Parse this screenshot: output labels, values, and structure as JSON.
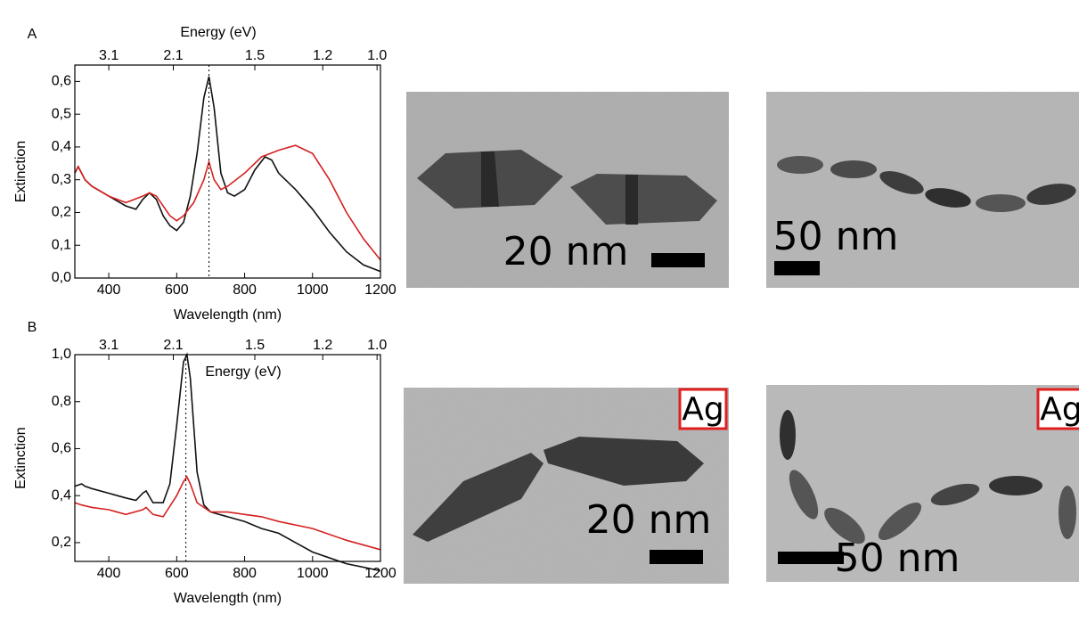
{
  "chart_data": [
    {
      "type": "line",
      "panel_label": "A",
      "xlabel": "Wavelength (nm)",
      "ylabel": "Extinction",
      "x2label": "Energy (eV)",
      "xlim": [
        300,
        1200
      ],
      "ylim": [
        0,
        0.65
      ],
      "xticks": [
        400,
        600,
        800,
        1000,
        1200
      ],
      "yticks": [
        {
          "value": 0,
          "label": "0,0"
        },
        {
          "value": 0.1,
          "label": "0,1"
        },
        {
          "value": 0.2,
          "label": "0,2"
        },
        {
          "value": 0.3,
          "label": "0,3"
        },
        {
          "value": 0.4,
          "label": "0,4"
        },
        {
          "value": 0.5,
          "label": "0,5"
        },
        {
          "value": 0.6,
          "label": "0,6"
        }
      ],
      "x2ticks": [
        {
          "value": 400,
          "label": "3.1"
        },
        {
          "value": 590,
          "label": "2.1"
        },
        {
          "value": 830,
          "label": "1.5"
        },
        {
          "value": 1030,
          "label": "1.2"
        },
        {
          "value": 1190,
          "label": "1.0"
        }
      ],
      "vline": 695,
      "series": [
        {
          "color": "#111111",
          "x": [
            300,
            310,
            320,
            330,
            350,
            400,
            450,
            480,
            500,
            520,
            540,
            560,
            580,
            600,
            620,
            640,
            660,
            680,
            695,
            710,
            730,
            750,
            770,
            800,
            830,
            860,
            880,
            900,
            950,
            1000,
            1050,
            1100,
            1150,
            1200
          ],
          "values": [
            0.32,
            0.34,
            0.32,
            0.3,
            0.28,
            0.25,
            0.22,
            0.21,
            0.24,
            0.26,
            0.24,
            0.19,
            0.16,
            0.145,
            0.17,
            0.25,
            0.38,
            0.55,
            0.615,
            0.52,
            0.32,
            0.26,
            0.25,
            0.27,
            0.33,
            0.37,
            0.36,
            0.32,
            0.27,
            0.21,
            0.14,
            0.08,
            0.04,
            0.02
          ]
        },
        {
          "color": "#d62020",
          "x": [
            300,
            310,
            330,
            350,
            400,
            450,
            500,
            520,
            540,
            560,
            580,
            600,
            620,
            650,
            680,
            695,
            710,
            730,
            750,
            800,
            850,
            900,
            950,
            1000,
            1050,
            1100,
            1150,
            1200
          ],
          "values": [
            0.32,
            0.34,
            0.3,
            0.28,
            0.25,
            0.23,
            0.25,
            0.26,
            0.25,
            0.22,
            0.19,
            0.175,
            0.19,
            0.23,
            0.3,
            0.355,
            0.3,
            0.27,
            0.28,
            0.32,
            0.37,
            0.39,
            0.405,
            0.38,
            0.3,
            0.2,
            0.12,
            0.055
          ]
        }
      ]
    },
    {
      "type": "line",
      "panel_label": "B",
      "xlabel": "Wavelength (nm)",
      "ylabel": "Extinction",
      "x2label": "Energy (eV)",
      "xlim": [
        300,
        1200
      ],
      "ylim": [
        0.12,
        1.0
      ],
      "xticks": [
        400,
        600,
        800,
        1000,
        1200
      ],
      "yticks": [
        {
          "value": 0.2,
          "label": "0,2"
        },
        {
          "value": 0.4,
          "label": "0,4"
        },
        {
          "value": 0.6,
          "label": "0,6"
        },
        {
          "value": 0.8,
          "label": "0,8"
        },
        {
          "value": 1.0,
          "label": "1,0"
        }
      ],
      "x2ticks": [
        {
          "value": 400,
          "label": "3.1"
        },
        {
          "value": 590,
          "label": "2.1"
        },
        {
          "value": 830,
          "label": "1.5"
        },
        {
          "value": 1030,
          "label": "1.2"
        },
        {
          "value": 1190,
          "label": "1.0"
        }
      ],
      "vline": 627,
      "series": [
        {
          "color": "#111111",
          "x": [
            300,
            320,
            330,
            350,
            400,
            450,
            480,
            500,
            510,
            530,
            560,
            580,
            600,
            620,
            630,
            640,
            660,
            680,
            700,
            750,
            800,
            850,
            900,
            950,
            1000,
            1100,
            1200
          ],
          "values": [
            0.44,
            0.45,
            0.44,
            0.43,
            0.41,
            0.39,
            0.38,
            0.41,
            0.42,
            0.37,
            0.37,
            0.45,
            0.7,
            0.97,
            1.0,
            0.9,
            0.5,
            0.36,
            0.33,
            0.31,
            0.29,
            0.26,
            0.24,
            0.2,
            0.16,
            0.11,
            0.08
          ]
        },
        {
          "color": "#d62020",
          "x": [
            300,
            320,
            350,
            400,
            450,
            500,
            510,
            530,
            560,
            600,
            620,
            630,
            640,
            660,
            700,
            750,
            800,
            850,
            900,
            1000,
            1100,
            1200
          ],
          "values": [
            0.37,
            0.36,
            0.35,
            0.34,
            0.32,
            0.34,
            0.35,
            0.32,
            0.31,
            0.4,
            0.46,
            0.48,
            0.45,
            0.37,
            0.33,
            0.33,
            0.32,
            0.31,
            0.29,
            0.26,
            0.21,
            0.17
          ]
        }
      ]
    }
  ],
  "images": [
    {
      "scale_label": "20 nm"
    },
    {
      "scale_label": "50 nm"
    },
    {
      "scale_label": "20 nm",
      "tag": "Ag"
    },
    {
      "scale_label": "50 nm",
      "tag": "Ag"
    }
  ]
}
